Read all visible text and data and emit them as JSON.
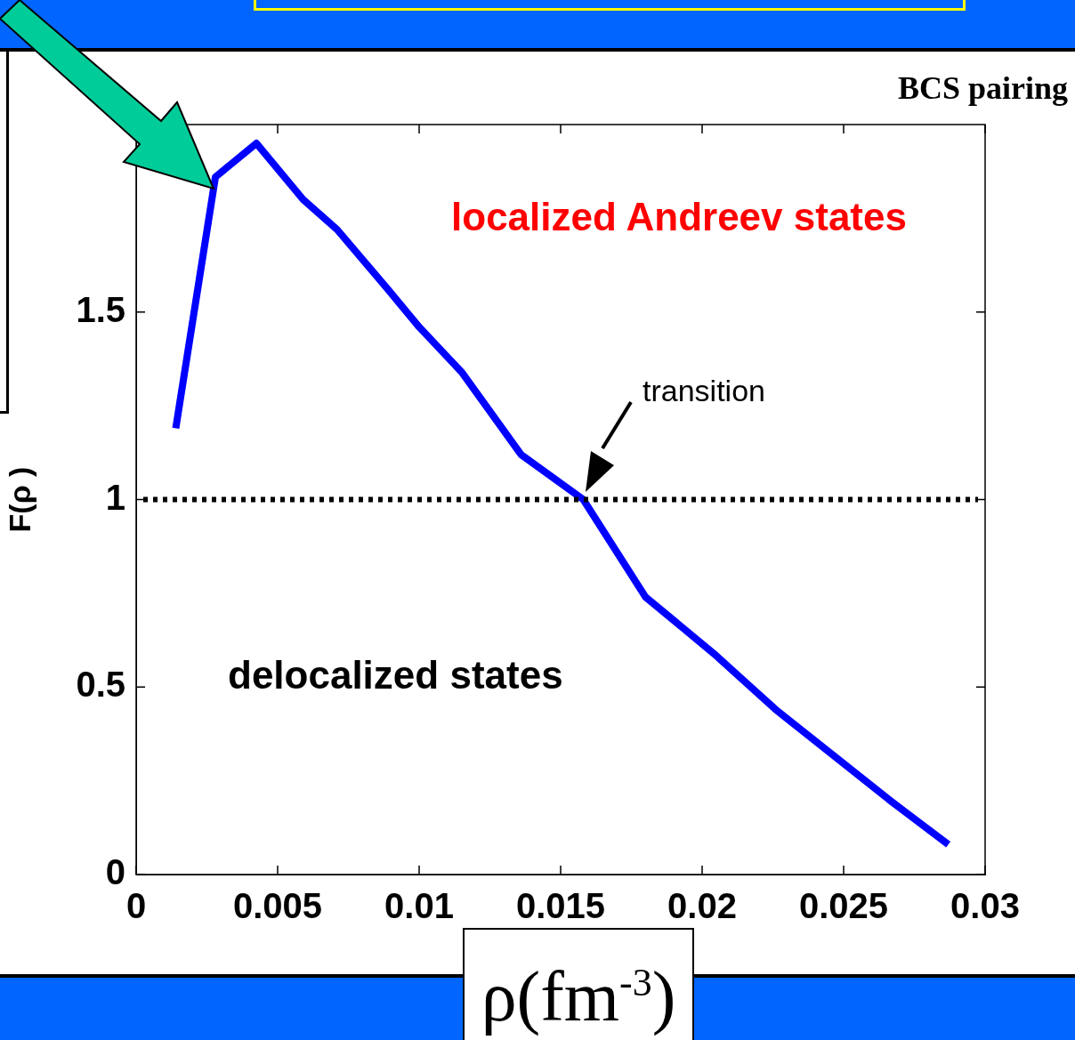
{
  "chart_data": {
    "type": "line",
    "xlabel": "ρ(fm$^{-3}$)",
    "ylabel": "F(ρ )",
    "x": [
      0.0014,
      0.0028,
      0.00425,
      0.0059,
      0.0071,
      0.0089,
      0.01,
      0.0115,
      0.0136,
      0.0158,
      0.018,
      0.0204,
      0.0226,
      0.0246,
      0.0266,
      0.0287
    ],
    "series": [
      {
        "color": "#0000ff",
        "values": [
          1.19,
          1.86,
          1.95,
          1.8,
          1.72,
          1.56,
          1.46,
          1.34,
          1.12,
          1.0,
          0.74,
          0.59,
          0.44,
          0.32,
          0.2,
          0.08
        ]
      }
    ],
    "xlim": [
      0,
      0.03
    ],
    "xticks": [
      0,
      0.005,
      0.01,
      0.015,
      0.02,
      0.025,
      0.03
    ],
    "ylim": [
      0,
      2
    ],
    "yticks": [
      0,
      0.5,
      1,
      1.5
    ],
    "ref_lines": [
      {
        "axis": "y",
        "value": 1,
        "color": "#000000",
        "line_style": "dotted"
      }
    ],
    "annotations": [
      "localized Andreev states",
      "delocalized states",
      "transition",
      "BCS pairing"
    ],
    "grid": false,
    "legend": false,
    "marker": "none",
    "line_style": "solid"
  }
}
